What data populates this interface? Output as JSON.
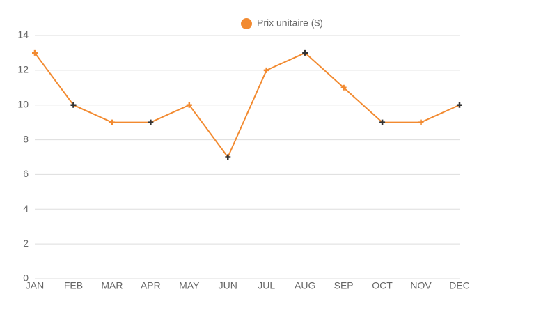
{
  "chart_data": {
    "type": "line",
    "categories": [
      "JAN",
      "FEB",
      "MAR",
      "APR",
      "MAY",
      "JUN",
      "JUL",
      "AUG",
      "SEP",
      "OCT",
      "NOV",
      "DEC"
    ],
    "series": [
      {
        "name": "Prix unitaire ($)",
        "color": "#f28a30",
        "values": [
          13,
          10,
          9,
          9,
          10,
          7,
          12,
          13,
          11,
          9,
          9,
          10
        ],
        "marker_colors": [
          "#f28a30",
          "#333333",
          "#f28a30",
          "#333333",
          "#f28a30",
          "#333333",
          "#f28a30",
          "#333333",
          "#f28a30",
          "#333333",
          "#f28a30",
          "#333333"
        ]
      }
    ],
    "ylim": [
      0,
      14
    ],
    "yticks": [
      0,
      2,
      4,
      6,
      8,
      10,
      12,
      14
    ],
    "grid": true,
    "legend": "top"
  }
}
